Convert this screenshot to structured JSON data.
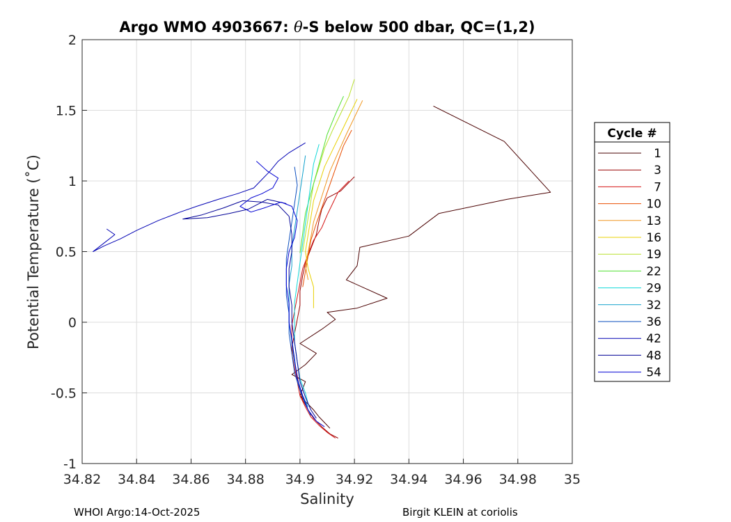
{
  "chart_data": {
    "type": "line",
    "title_prefix": "Argo WMO 4903667: ",
    "title_theta": "θ",
    "title_suffix": "-S below 500 dbar,  QC=(1,2)",
    "xlabel": "Salinity",
    "ylabel": "Potential Temperature (˚C)",
    "xlim": [
      34.82,
      35
    ],
    "ylim": [
      -1,
      2
    ],
    "xticks": [
      "34.82",
      "34.84",
      "34.86",
      "34.88",
      "34.9",
      "34.92",
      "34.94",
      "34.96",
      "34.98",
      "35"
    ],
    "yticks": [
      "-1",
      "-0.5",
      "0",
      "0.5",
      "1",
      "1.5",
      "2"
    ],
    "grid": true,
    "legend": {
      "title": "Cycle #",
      "position": "outside-right"
    },
    "footer_left": "WHOI Argo:14-Oct-2025",
    "footer_right": "Birgit KLEIN at coriolis",
    "series": [
      {
        "name": "1",
        "color": "#4a0000",
        "points": [
          [
            34.949,
            1.53
          ],
          [
            34.975,
            1.28
          ],
          [
            34.992,
            0.92
          ],
          [
            34.976,
            0.87
          ],
          [
            34.951,
            0.77
          ],
          [
            34.94,
            0.61
          ],
          [
            34.922,
            0.53
          ],
          [
            34.921,
            0.4
          ],
          [
            34.917,
            0.3
          ],
          [
            34.932,
            0.17
          ],
          [
            34.921,
            0.1
          ],
          [
            34.91,
            0.07
          ],
          [
            34.913,
            0.02
          ],
          [
            34.908,
            -0.05
          ],
          [
            34.9,
            -0.15
          ],
          [
            34.906,
            -0.22
          ],
          [
            34.902,
            -0.3
          ],
          [
            34.897,
            -0.37
          ],
          [
            34.902,
            -0.42
          ],
          [
            34.901,
            -0.47
          ],
          [
            34.9,
            -0.52
          ],
          [
            34.903,
            -0.58
          ],
          [
            34.905,
            -0.62
          ],
          [
            34.907,
            -0.67
          ],
          [
            34.909,
            -0.71
          ],
          [
            34.911,
            -0.75
          ]
        ]
      },
      {
        "name": "3",
        "color": "#990000",
        "points": [
          [
            34.92,
            1.03
          ],
          [
            34.915,
            0.93
          ],
          [
            34.91,
            0.88
          ],
          [
            34.908,
            0.8
          ],
          [
            34.907,
            0.72
          ],
          [
            34.906,
            0.62
          ],
          [
            34.904,
            0.52
          ],
          [
            34.902,
            0.42
          ],
          [
            34.901,
            0.33
          ],
          [
            34.9,
            0.22
          ],
          [
            34.9,
            0.12
          ],
          [
            34.899,
            0.02
          ],
          [
            34.898,
            -0.08
          ],
          [
            34.897,
            -0.18
          ],
          [
            34.898,
            -0.28
          ],
          [
            34.899,
            -0.38
          ],
          [
            34.9,
            -0.48
          ],
          [
            34.901,
            -0.55
          ],
          [
            34.903,
            -0.62
          ],
          [
            34.905,
            -0.68
          ],
          [
            34.908,
            -0.74
          ],
          [
            34.911,
            -0.79
          ],
          [
            34.914,
            -0.82
          ]
        ]
      },
      {
        "name": "7",
        "color": "#d41414",
        "points": [
          [
            34.918,
            1.0
          ],
          [
            34.914,
            0.92
          ],
          [
            34.912,
            0.84
          ],
          [
            34.91,
            0.76
          ],
          [
            34.908,
            0.67
          ],
          [
            34.905,
            0.58
          ],
          [
            34.903,
            0.48
          ],
          [
            34.901,
            0.38
          ],
          [
            34.9,
            0.28
          ],
          [
            34.899,
            0.18
          ],
          [
            34.898,
            0.08
          ],
          [
            34.897,
            -0.02
          ],
          [
            34.897,
            -0.12
          ],
          [
            34.897,
            -0.22
          ],
          [
            34.898,
            -0.32
          ],
          [
            34.899,
            -0.42
          ],
          [
            34.9,
            -0.52
          ],
          [
            34.902,
            -0.6
          ],
          [
            34.904,
            -0.67
          ],
          [
            34.907,
            -0.73
          ],
          [
            34.91,
            -0.78
          ],
          [
            34.913,
            -0.82
          ]
        ]
      },
      {
        "name": "10",
        "color": "#e84d00",
        "points": [
          [
            34.919,
            1.36
          ],
          [
            34.916,
            1.25
          ],
          [
            34.914,
            1.14
          ],
          [
            34.912,
            1.03
          ],
          [
            34.91,
            0.92
          ],
          [
            34.908,
            0.81
          ],
          [
            34.906,
            0.7
          ],
          [
            34.904,
            0.58
          ],
          [
            34.903,
            0.47
          ],
          [
            34.902,
            0.36
          ],
          [
            34.901,
            0.25
          ]
        ]
      },
      {
        "name": "13",
        "color": "#f0961e",
        "points": [
          [
            34.923,
            1.57
          ],
          [
            34.92,
            1.45
          ],
          [
            34.917,
            1.33
          ],
          [
            34.914,
            1.2
          ],
          [
            34.911,
            1.07
          ],
          [
            34.909,
            0.95
          ],
          [
            34.907,
            0.83
          ],
          [
            34.905,
            0.71
          ],
          [
            34.904,
            0.6
          ],
          [
            34.903,
            0.5
          ],
          [
            34.902,
            0.4
          ],
          [
            34.903,
            0.3
          ]
        ]
      },
      {
        "name": "16",
        "color": "#e8d000",
        "points": [
          [
            34.921,
            1.58
          ],
          [
            34.918,
            1.46
          ],
          [
            34.915,
            1.34
          ],
          [
            34.912,
            1.22
          ],
          [
            34.909,
            1.1
          ],
          [
            34.907,
            0.98
          ],
          [
            34.905,
            0.86
          ],
          [
            34.904,
            0.74
          ],
          [
            34.903,
            0.62
          ],
          [
            34.902,
            0.5
          ],
          [
            34.903,
            0.38
          ],
          [
            34.905,
            0.25
          ],
          [
            34.905,
            0.1
          ]
        ]
      },
      {
        "name": "19",
        "color": "#b8e02e",
        "points": [
          [
            34.92,
            1.72
          ],
          [
            34.918,
            1.6
          ],
          [
            34.915,
            1.48
          ],
          [
            34.912,
            1.36
          ],
          [
            34.909,
            1.23
          ],
          [
            34.907,
            1.1
          ],
          [
            34.905,
            0.98
          ],
          [
            34.904,
            0.86
          ],
          [
            34.903,
            0.74
          ],
          [
            34.902,
            0.62
          ],
          [
            34.901,
            0.5
          ]
        ]
      },
      {
        "name": "22",
        "color": "#50e030",
        "points": [
          [
            34.916,
            1.6
          ],
          [
            34.913,
            1.47
          ],
          [
            34.91,
            1.33
          ],
          [
            34.908,
            1.19
          ],
          [
            34.906,
            1.05
          ],
          [
            34.904,
            0.91
          ],
          [
            34.902,
            0.77
          ],
          [
            34.901,
            0.63
          ],
          [
            34.9,
            0.49
          ]
        ]
      },
      {
        "name": "29",
        "color": "#10d8d8",
        "points": [
          [
            34.907,
            1.26
          ],
          [
            34.905,
            1.12
          ],
          [
            34.904,
            0.98
          ],
          [
            34.903,
            0.84
          ],
          [
            34.902,
            0.7
          ],
          [
            34.901,
            0.56
          ],
          [
            34.9,
            0.42
          ],
          [
            34.899,
            0.28
          ],
          [
            34.898,
            0.14
          ],
          [
            34.898,
            0.0
          ],
          [
            34.898,
            -0.14
          ],
          [
            34.899,
            -0.28
          ],
          [
            34.9,
            -0.4
          ],
          [
            34.902,
            -0.5
          ],
          [
            34.903,
            -0.58
          ]
        ]
      },
      {
        "name": "32",
        "color": "#0fa0cc",
        "points": [
          [
            34.902,
            1.18
          ],
          [
            34.901,
            1.05
          ],
          [
            34.9,
            0.92
          ],
          [
            34.899,
            0.79
          ],
          [
            34.898,
            0.66
          ],
          [
            34.897,
            0.53
          ],
          [
            34.897,
            0.4
          ],
          [
            34.896,
            0.27
          ],
          [
            34.896,
            0.14
          ],
          [
            34.896,
            0.0
          ],
          [
            34.897,
            -0.14
          ],
          [
            34.898,
            -0.28
          ],
          [
            34.899,
            -0.4
          ],
          [
            34.901,
            -0.52
          ],
          [
            34.903,
            -0.6
          ]
        ]
      },
      {
        "name": "36",
        "color": "#0a4dbe",
        "points": [
          [
            34.898,
            1.1
          ],
          [
            34.899,
            0.97
          ],
          [
            34.898,
            0.84
          ],
          [
            34.897,
            0.71
          ],
          [
            34.896,
            0.58
          ],
          [
            34.895,
            0.45
          ],
          [
            34.895,
            0.32
          ],
          [
            34.895,
            0.19
          ],
          [
            34.896,
            0.06
          ],
          [
            34.896,
            -0.08
          ],
          [
            34.897,
            -0.22
          ],
          [
            34.898,
            -0.36
          ],
          [
            34.9,
            -0.48
          ],
          [
            34.902,
            -0.58
          ],
          [
            34.904,
            -0.66
          ]
        ]
      },
      {
        "name": "42",
        "color": "#0000b4",
        "points": [
          [
            34.902,
            1.27
          ],
          [
            34.896,
            1.2
          ],
          [
            34.892,
            1.14
          ],
          [
            34.889,
            1.07
          ],
          [
            34.886,
            1.01
          ],
          [
            34.883,
            0.95
          ],
          [
            34.877,
            0.91
          ],
          [
            34.87,
            0.87
          ],
          [
            34.862,
            0.82
          ],
          [
            34.856,
            0.78
          ],
          [
            34.848,
            0.72
          ],
          [
            34.84,
            0.65
          ],
          [
            34.834,
            0.59
          ],
          [
            34.828,
            0.54
          ],
          [
            34.824,
            0.5
          ],
          [
            34.828,
            0.56
          ],
          [
            34.832,
            0.62
          ],
          [
            34.829,
            0.66
          ]
        ]
      },
      {
        "name": "48",
        "color": "#000096",
        "points": [
          [
            34.895,
            0.84
          ],
          [
            34.888,
            0.87
          ],
          [
            34.881,
            0.8
          ],
          [
            34.874,
            0.77
          ],
          [
            34.866,
            0.74
          ],
          [
            34.857,
            0.73
          ],
          [
            34.864,
            0.76
          ],
          [
            34.872,
            0.81
          ],
          [
            34.879,
            0.86
          ],
          [
            34.886,
            0.85
          ],
          [
            34.892,
            0.83
          ],
          [
            34.896,
            0.75
          ],
          [
            34.897,
            0.62
          ],
          [
            34.897,
            0.5
          ],
          [
            34.896,
            0.38
          ],
          [
            34.896,
            0.25
          ],
          [
            34.897,
            0.12
          ],
          [
            34.897,
            0.0
          ],
          [
            34.898,
            -0.14
          ],
          [
            34.899,
            -0.28
          ],
          [
            34.9,
            -0.42
          ],
          [
            34.902,
            -0.53
          ],
          [
            34.904,
            -0.62
          ],
          [
            34.906,
            -0.68
          ]
        ]
      },
      {
        "name": "54",
        "color": "#0000d2",
        "points": [
          [
            34.884,
            1.14
          ],
          [
            34.888,
            1.07
          ],
          [
            34.892,
            1.02
          ],
          [
            34.89,
            0.95
          ],
          [
            34.886,
            0.91
          ],
          [
            34.882,
            0.88
          ],
          [
            34.878,
            0.82
          ],
          [
            34.882,
            0.78
          ],
          [
            34.887,
            0.81
          ],
          [
            34.893,
            0.85
          ],
          [
            34.897,
            0.82
          ],
          [
            34.899,
            0.72
          ],
          [
            34.898,
            0.6
          ],
          [
            34.896,
            0.5
          ],
          [
            34.895,
            0.38
          ],
          [
            34.895,
            0.26
          ],
          [
            34.896,
            0.13
          ],
          [
            34.896,
            0.0
          ],
          [
            34.897,
            -0.12
          ],
          [
            34.898,
            -0.26
          ],
          [
            34.899,
            -0.4
          ],
          [
            34.901,
            -0.52
          ],
          [
            34.903,
            -0.62
          ],
          [
            34.906,
            -0.7
          ],
          [
            34.909,
            -0.74
          ]
        ]
      }
    ]
  }
}
